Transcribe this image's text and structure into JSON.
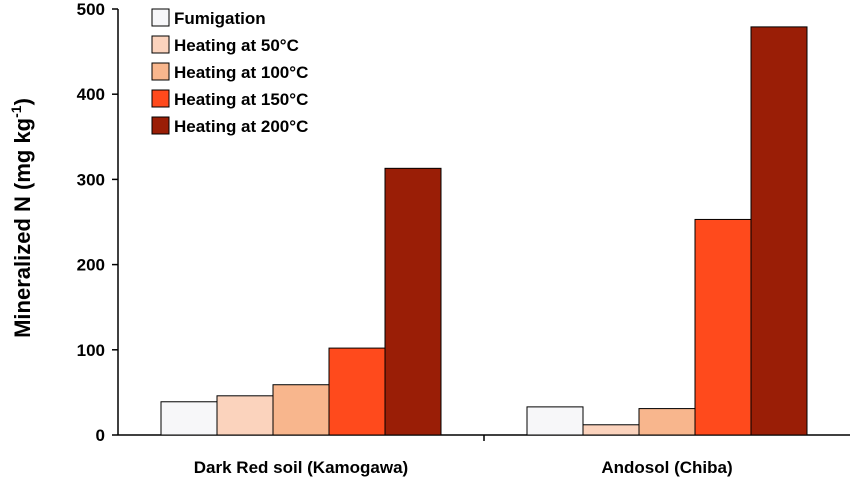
{
  "chart_data": {
    "type": "bar",
    "ylabel": "Mineralized N (mg kg",
    "ylabel_superscript": "-1",
    "ylabel_suffix": ")",
    "ylim": [
      0,
      500
    ],
    "yticks": [
      0,
      100,
      200,
      300,
      400,
      500
    ],
    "categories": [
      "Dark Red soil (Kamogawa)",
      "Andosol (Chiba)"
    ],
    "series": [
      {
        "name": "Fumigation",
        "color": "#f7f7f9",
        "values": [
          39,
          33
        ]
      },
      {
        "name": "Heating at 50°C",
        "color": "#fbd3bd",
        "values": [
          46,
          12
        ]
      },
      {
        "name": "Heating at 100°C",
        "color": "#f8b68d",
        "values": [
          59,
          31
        ]
      },
      {
        "name": "Heating at 150°C",
        "color": "#ff4a1c",
        "values": [
          102,
          253
        ]
      },
      {
        "name": "Heating at 200°C",
        "color": "#9a1e06",
        "values": [
          313,
          479
        ]
      }
    ],
    "legend_position": "top-left",
    "grid": false
  }
}
